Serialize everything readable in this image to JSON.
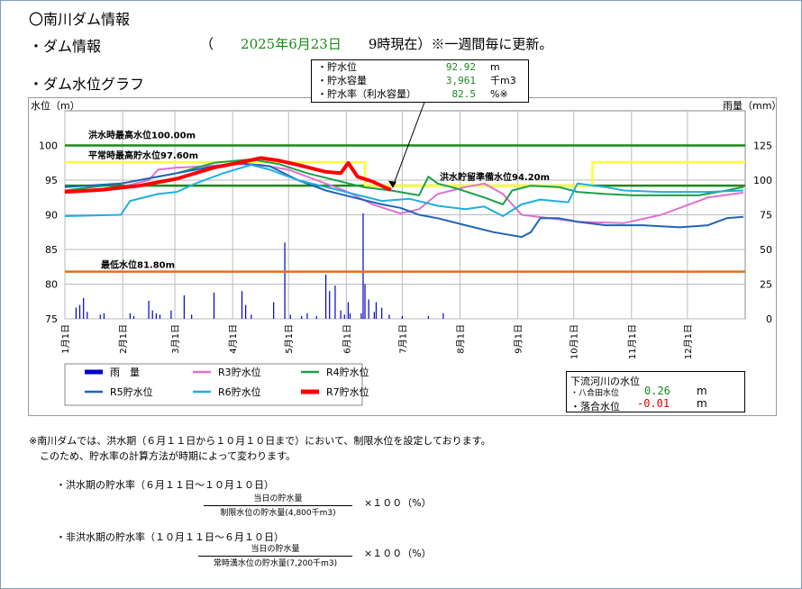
{
  "header": {
    "title": "〇南川ダム情報",
    "dam_info": "・ダム情報",
    "date_open": "（",
    "date": "2025年6月23日",
    "time": "9時現在）※一週間毎に更新。",
    "graph_title": "・ダム水位グラフ"
  },
  "info": {
    "rows": [
      {
        "label": "・貯水位",
        "value": "92.92",
        "unit": "m"
      },
      {
        "label": "・貯水容量",
        "value": "3,961",
        "unit": "千m3"
      },
      {
        "label": "・貯水率（利水容量）",
        "value": "82.5",
        "unit": "%※"
      }
    ]
  },
  "downstream": {
    "title": "下流河川の水位",
    "r1_label": "・八合田水位",
    "r1_value": "0.26",
    "r1_unit": "m",
    "r2_label": "・落合水位",
    "r2_value": "-0.01",
    "r2_unit": "m"
  },
  "notes": {
    "line1": "※南川ダムでは、洪水期（６月１１日から１０月１０日まで）において、制限水位を設定しております。",
    "line2": "このため、貯水率の計算方法が時期によって変わります。",
    "f1_title": "・洪水期の貯水率（６月１１日～１０月１０日）",
    "f1_num": "当日の貯水量",
    "f1_den": "制限水位の貯水量(4,800千m3)",
    "f1_times": "×１００（%）",
    "f2_title": "・非洪水期の貯水率（１０月１１日～６月１０日）",
    "f2_num": "当日の貯水量",
    "f2_den": "常時満水位の貯水量(7,200千m3)",
    "f2_times": "×１００（%）"
  },
  "colors": {
    "rain": "#0000cc",
    "r3": "#e070d0",
    "r4": "#1aa04a",
    "r5": "#1f64b8",
    "r6": "#20aee0",
    "r7": "#ff0000",
    "flood": "#1a8a1a",
    "normal": "#ffff33",
    "prep": "#1a8a1a",
    "min": "#e07020",
    "limit": "#ffff33"
  },
  "chart_data": {
    "type": "line",
    "ylabel_left": "水位（m）",
    "ylabel_right": "雨量（mm）",
    "ylim_left": [
      75,
      105
    ],
    "ylim_right": [
      0,
      150
    ],
    "yticks_left": [
      75,
      80,
      85,
      90,
      95,
      100
    ],
    "yticks_right": [
      0,
      25,
      50,
      75,
      100,
      125
    ],
    "x_range": [
      0,
      365
    ],
    "x_labels": [
      "1月1日",
      "2月1日",
      "3月1日",
      "4月1日",
      "5月1日",
      "6月1日",
      "7月1日",
      "8月1日",
      "9月1日",
      "10月1日",
      "11月1日",
      "12月1日"
    ],
    "x_label_days": [
      0,
      31,
      59,
      90,
      120,
      151,
      181,
      212,
      243,
      273,
      304,
      334
    ],
    "reference_lines": [
      {
        "name": "洪水時最高水位100.00m",
        "value": 100.0,
        "key": "flood"
      },
      {
        "name": "平常時最高貯水位97.60m",
        "value": 97.6,
        "key": "normal"
      },
      {
        "name": "洪水貯留準備水位94.20m",
        "value": 94.2,
        "key": "prep"
      },
      {
        "name": "最低水位81.80m",
        "value": 81.8,
        "key": "min"
      }
    ],
    "limit_level": [
      [
        0,
        97.6
      ],
      [
        161,
        97.6
      ],
      [
        161,
        94.2
      ],
      [
        283,
        94.2
      ],
      [
        283,
        97.6
      ],
      [
        365,
        97.6
      ]
    ],
    "series": [
      {
        "name": "R3貯水位",
        "key": "r3",
        "points": [
          [
            0,
            93.3
          ],
          [
            30,
            94
          ],
          [
            45,
            95
          ],
          [
            50,
            96.5
          ],
          [
            60,
            96.8
          ],
          [
            75,
            97
          ],
          [
            90,
            97.3
          ],
          [
            105,
            97.2
          ],
          [
            120,
            96.5
          ],
          [
            135,
            95
          ],
          [
            150,
            93.5
          ],
          [
            165,
            91.5
          ],
          [
            180,
            90.2
          ],
          [
            190,
            90.8
          ],
          [
            200,
            93
          ],
          [
            215,
            94
          ],
          [
            225,
            94.5
          ],
          [
            235,
            93
          ],
          [
            245,
            90
          ],
          [
            260,
            89.5
          ],
          [
            275,
            89
          ],
          [
            300,
            88.8
          ],
          [
            320,
            90
          ],
          [
            345,
            92.5
          ],
          [
            364,
            93.2
          ]
        ]
      },
      {
        "name": "R4貯水位",
        "key": "r4",
        "points": [
          [
            0,
            93.5
          ],
          [
            30,
            94.5
          ],
          [
            60,
            96
          ],
          [
            80,
            97.5
          ],
          [
            100,
            98
          ],
          [
            115,
            97.3
          ],
          [
            130,
            96
          ],
          [
            145,
            95
          ],
          [
            160,
            94
          ],
          [
            175,
            93.5
          ],
          [
            190,
            92.8
          ],
          [
            195,
            95.5
          ],
          [
            200,
            94.5
          ],
          [
            210,
            93.8
          ],
          [
            225,
            92.5
          ],
          [
            235,
            91.5
          ],
          [
            240,
            93.5
          ],
          [
            250,
            94.2
          ],
          [
            265,
            94
          ],
          [
            275,
            93.3
          ],
          [
            290,
            93
          ],
          [
            305,
            92.8
          ],
          [
            320,
            92.8
          ],
          [
            340,
            92.8
          ],
          [
            355,
            93.5
          ],
          [
            364,
            94
          ]
        ]
      },
      {
        "name": "R5貯水位",
        "key": "r5",
        "points": [
          [
            0,
            94
          ],
          [
            30,
            94.5
          ],
          [
            60,
            96
          ],
          [
            80,
            97
          ],
          [
            95,
            97.4
          ],
          [
            110,
            97
          ],
          [
            125,
            95
          ],
          [
            140,
            93.5
          ],
          [
            155,
            92.5
          ],
          [
            170,
            91.5
          ],
          [
            180,
            91
          ],
          [
            190,
            90
          ],
          [
            200,
            89.5
          ],
          [
            215,
            88.5
          ],
          [
            230,
            87.5
          ],
          [
            245,
            86.8
          ],
          [
            250,
            87.5
          ],
          [
            255,
            89.5
          ],
          [
            265,
            89.5
          ],
          [
            275,
            89
          ],
          [
            290,
            88.5
          ],
          [
            310,
            88.5
          ],
          [
            330,
            88.2
          ],
          [
            345,
            88.5
          ],
          [
            355,
            89.5
          ],
          [
            364,
            89.7
          ]
        ]
      },
      {
        "name": "R6貯水位",
        "key": "r6",
        "points": [
          [
            0,
            89.8
          ],
          [
            30,
            90
          ],
          [
            35,
            92
          ],
          [
            50,
            93
          ],
          [
            60,
            93.3
          ],
          [
            70,
            94.5
          ],
          [
            85,
            96
          ],
          [
            100,
            97.2
          ],
          [
            110,
            96.5
          ],
          [
            125,
            95
          ],
          [
            140,
            94
          ],
          [
            155,
            93
          ],
          [
            170,
            92
          ],
          [
            185,
            92.3
          ],
          [
            200,
            91.3
          ],
          [
            215,
            90.8
          ],
          [
            225,
            91.2
          ],
          [
            235,
            89.8
          ],
          [
            245,
            91.5
          ],
          [
            255,
            92.2
          ],
          [
            270,
            91.8
          ],
          [
            275,
            94.5
          ],
          [
            290,
            94
          ],
          [
            300,
            93.5
          ],
          [
            320,
            93.3
          ],
          [
            345,
            93.3
          ],
          [
            364,
            93.5
          ]
        ]
      },
      {
        "name": "R7貯水位",
        "key": "r7",
        "points": [
          [
            0,
            93.3
          ],
          [
            20,
            93.6
          ],
          [
            40,
            94.2
          ],
          [
            60,
            95.2
          ],
          [
            80,
            96.8
          ],
          [
            95,
            97.6
          ],
          [
            105,
            98.2
          ],
          [
            115,
            97.8
          ],
          [
            125,
            97.2
          ],
          [
            140,
            96.2
          ],
          [
            148,
            96
          ],
          [
            152,
            97.5
          ],
          [
            157,
            95.5
          ],
          [
            165,
            94.8
          ],
          [
            173,
            93.8
          ],
          [
            175,
            93.6
          ]
        ]
      }
    ],
    "rain": {
      "name": "雨量",
      "key": "rain",
      "points": [
        [
          6,
          8
        ],
        [
          8,
          10
        ],
        [
          10,
          15
        ],
        [
          12,
          5
        ],
        [
          19,
          3
        ],
        [
          21,
          4
        ],
        [
          35,
          4
        ],
        [
          37,
          2
        ],
        [
          45,
          13
        ],
        [
          47,
          6
        ],
        [
          49,
          4
        ],
        [
          51,
          3
        ],
        [
          57,
          6
        ],
        [
          64,
          17
        ],
        [
          68,
          3
        ],
        [
          80,
          19
        ],
        [
          95,
          20
        ],
        [
          97,
          10
        ],
        [
          100,
          3
        ],
        [
          112,
          12
        ],
        [
          118,
          55
        ],
        [
          121,
          3
        ],
        [
          127,
          2
        ],
        [
          130,
          4
        ],
        [
          135,
          2
        ],
        [
          140,
          32
        ],
        [
          142,
          20
        ],
        [
          145,
          24
        ],
        [
          148,
          6
        ],
        [
          150,
          3
        ],
        [
          152,
          12
        ],
        [
          153,
          4
        ],
        [
          159,
          4
        ],
        [
          160,
          76
        ],
        [
          161,
          25
        ],
        [
          163,
          14
        ],
        [
          166,
          5
        ],
        [
          167,
          12
        ],
        [
          170,
          8
        ],
        [
          174,
          3
        ],
        [
          181,
          2
        ],
        [
          195,
          2
        ],
        [
          203,
          4
        ]
      ]
    }
  },
  "legend": {
    "items": [
      {
        "label": "雨　量",
        "key": "rain"
      },
      {
        "label": "R3貯水位",
        "key": "r3"
      },
      {
        "label": "R4貯水位",
        "key": "r4"
      },
      {
        "label": "R5貯水位",
        "key": "r5"
      },
      {
        "label": "R6貯水位",
        "key": "r6"
      },
      {
        "label": "R7貯水位",
        "key": "r7"
      }
    ]
  }
}
